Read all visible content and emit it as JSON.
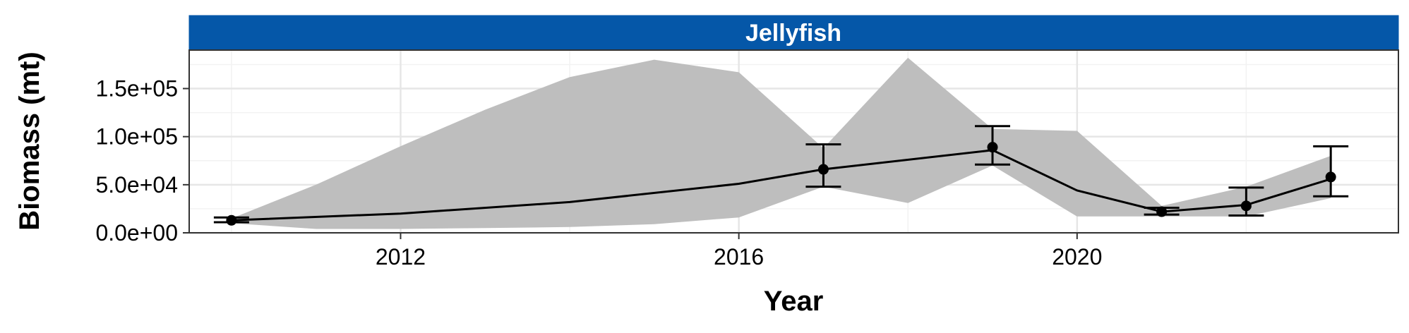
{
  "chart_data": {
    "type": "line",
    "panel_title": "Jellyfish",
    "xlabel": "Year",
    "ylabel": "Biomass (mt)",
    "xlim": [
      2009.5,
      2023.8
    ],
    "ylim": [
      0,
      190000
    ],
    "x_ticks": [
      2012,
      2016,
      2020
    ],
    "x_tick_labels": [
      "2012",
      "2016",
      "2020"
    ],
    "y_ticks": [
      0,
      50000,
      100000,
      150000
    ],
    "y_tick_labels": [
      "0.0e+00",
      "5.0e+04",
      "1.0e+05",
      "1.5e+05"
    ],
    "grid": true,
    "colors": {
      "strip_fill": "#0557a8",
      "ribbon_fill": "#bebebe",
      "line": "#000000",
      "grid_major": "#e6e6e6",
      "grid_minor": "#f2f2f2"
    },
    "ribbon": {
      "x": [
        2010,
        2011,
        2012,
        2013,
        2014,
        2015,
        2016,
        2017,
        2018,
        2019,
        2020,
        2021,
        2022,
        2023
      ],
      "upper": [
        15000,
        50000,
        90000,
        128000,
        162000,
        180000,
        167000,
        88000,
        182000,
        108000,
        106000,
        28000,
        48000,
        80000
      ],
      "lower": [
        10000,
        4000,
        4000,
        5000,
        6000,
        9000,
        16000,
        48000,
        31000,
        70000,
        17000,
        17000,
        17000,
        36000
      ]
    },
    "series": [
      {
        "x": [
          2010,
          2012,
          2014,
          2016,
          2017,
          2019,
          2020,
          2021,
          2022,
          2023
        ],
        "values": [
          13000,
          20000,
          32000,
          51000,
          66000,
          86000,
          44000,
          22000,
          29000,
          56000
        ]
      }
    ],
    "points": {
      "x": [
        2010,
        2017,
        2019,
        2021,
        2022,
        2023
      ],
      "values": [
        13000,
        66000,
        89000,
        22000,
        28000,
        58000
      ],
      "error_low": [
        11000,
        48000,
        71000,
        19000,
        18000,
        38000
      ],
      "error_high": [
        16000,
        92000,
        111000,
        26000,
        47000,
        90000
      ]
    }
  }
}
